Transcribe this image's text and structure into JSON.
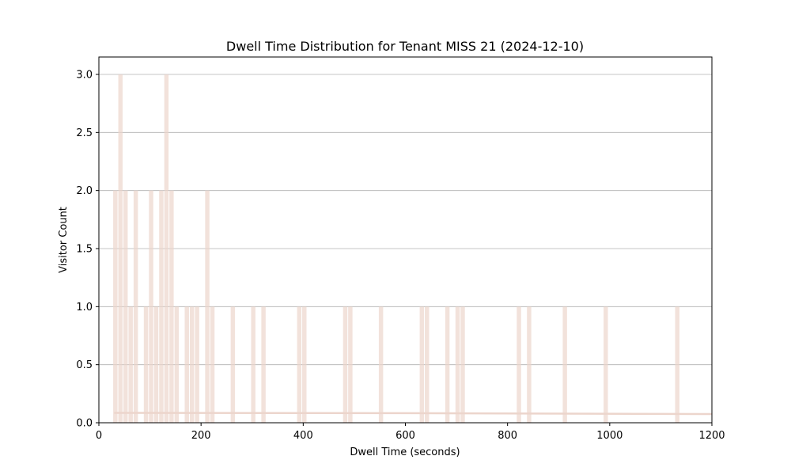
{
  "chart_data": {
    "type": "bar",
    "title": "Dwell Time Distribution for Tenant MISS 21 (2024-12-10)",
    "xlabel": "Dwell Time (seconds)",
    "ylabel": "Visitor Count",
    "xlim": [
      0,
      1200
    ],
    "ylim": [
      0,
      3.15
    ],
    "x_ticks": [
      0,
      200,
      400,
      600,
      800,
      1000,
      1200
    ],
    "x_tick_labels": [
      "0",
      "200",
      "400",
      "600",
      "800",
      "1000",
      "1200"
    ],
    "y_ticks": [
      0,
      0.5,
      1.0,
      1.5,
      2.0,
      2.5,
      3.0
    ],
    "y_tick_labels": [
      "0.0",
      "0.5",
      "1.0",
      "1.5",
      "2.0",
      "2.5",
      "3.0"
    ],
    "grid": "y",
    "bar_color": "#ecd5cc",
    "bar_width": 10,
    "bars": [
      {
        "x": 33,
        "value": 2
      },
      {
        "x": 43,
        "value": 3
      },
      {
        "x": 53,
        "value": 2
      },
      {
        "x": 63,
        "value": 1
      },
      {
        "x": 73,
        "value": 2
      },
      {
        "x": 93,
        "value": 1
      },
      {
        "x": 103,
        "value": 2
      },
      {
        "x": 113,
        "value": 1
      },
      {
        "x": 123,
        "value": 2
      },
      {
        "x": 133,
        "value": 3
      },
      {
        "x": 143,
        "value": 2
      },
      {
        "x": 153,
        "value": 1
      },
      {
        "x": 173,
        "value": 1
      },
      {
        "x": 183,
        "value": 1
      },
      {
        "x": 193,
        "value": 1
      },
      {
        "x": 213,
        "value": 2
      },
      {
        "x": 223,
        "value": 1
      },
      {
        "x": 263,
        "value": 1
      },
      {
        "x": 303,
        "value": 1
      },
      {
        "x": 323,
        "value": 1
      },
      {
        "x": 393,
        "value": 1
      },
      {
        "x": 403,
        "value": 1
      },
      {
        "x": 483,
        "value": 1
      },
      {
        "x": 493,
        "value": 1
      },
      {
        "x": 553,
        "value": 1
      },
      {
        "x": 633,
        "value": 1
      },
      {
        "x": 643,
        "value": 1
      },
      {
        "x": 683,
        "value": 1
      },
      {
        "x": 703,
        "value": 1
      },
      {
        "x": 713,
        "value": 1
      },
      {
        "x": 823,
        "value": 1
      },
      {
        "x": 843,
        "value": 1
      },
      {
        "x": 913,
        "value": 1
      },
      {
        "x": 993,
        "value": 1
      },
      {
        "x": 1133,
        "value": 1
      }
    ],
    "density_line": {
      "color": "#ecd5cc",
      "points": [
        [
          30,
          0.085
        ],
        [
          600,
          0.083
        ],
        [
          1200,
          0.075
        ]
      ]
    }
  }
}
